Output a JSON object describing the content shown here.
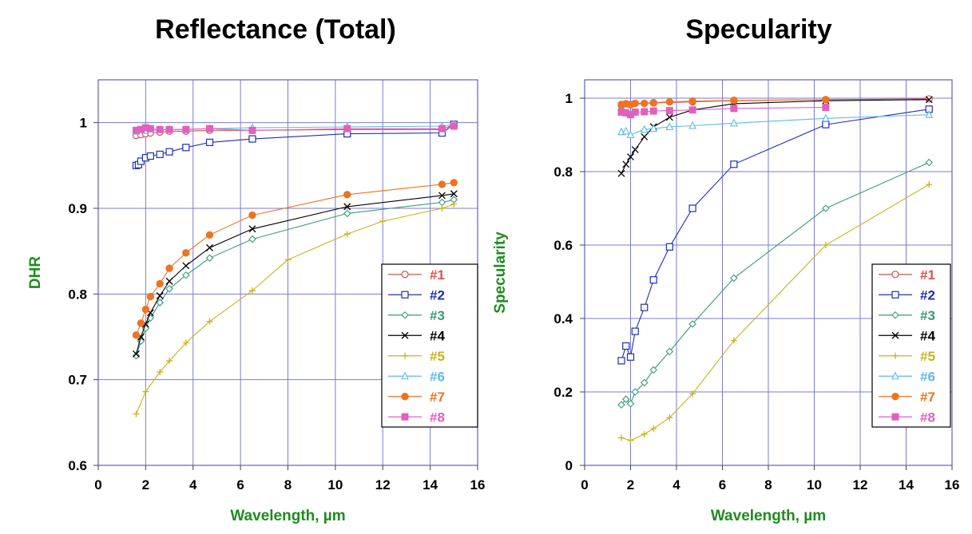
{
  "chart_data": [
    {
      "type": "line",
      "title": "Reflectance (Total)",
      "xlabel": "Wavelength, µm",
      "ylabel": "DHR",
      "xlim": [
        0,
        16
      ],
      "ylim": [
        0.6,
        1.05
      ],
      "xticks": [
        0,
        2,
        4,
        6,
        8,
        10,
        12,
        14,
        16
      ],
      "yticks": [
        0.6,
        0.7,
        0.8,
        0.9,
        1
      ],
      "xtick_labels": [
        "0",
        "2",
        "4",
        "6",
        "8",
        "10",
        "12",
        "14",
        "16"
      ],
      "ytick_labels": [
        "0.6",
        "0.7",
        "0.8",
        "0.9",
        "1"
      ],
      "grid": true,
      "legend_position": "right",
      "series": [
        {
          "name": "#1",
          "color": "#d9534f",
          "marker": "circle-open",
          "x": [
            1.6,
            1.8,
            2.0,
            2.2,
            2.6,
            3.0,
            3.7,
            4.7,
            6.5,
            10.5,
            14.5,
            15.0
          ],
          "y": [
            0.985,
            0.986,
            0.987,
            0.988,
            0.989,
            0.99,
            0.99,
            0.991,
            0.991,
            0.992,
            0.992,
            0.998
          ]
        },
        {
          "name": "#2",
          "color": "#1f2fb4",
          "marker": "square-open",
          "x": [
            1.6,
            1.7,
            1.8,
            2.0,
            2.2,
            2.6,
            3.0,
            3.7,
            4.7,
            6.5,
            10.5,
            14.5,
            15.0
          ],
          "y": [
            0.95,
            0.951,
            0.955,
            0.959,
            0.961,
            0.963,
            0.966,
            0.971,
            0.977,
            0.981,
            0.987,
            0.988,
            0.998
          ]
        },
        {
          "name": "#3",
          "color": "#3a9a7a",
          "marker": "diamond-open",
          "x": [
            1.6,
            1.8,
            2.0,
            2.2,
            2.6,
            3.0,
            3.7,
            4.7,
            6.5,
            10.5,
            14.5,
            15.0
          ],
          "y": [
            0.728,
            0.745,
            0.76,
            0.772,
            0.79,
            0.806,
            0.822,
            0.842,
            0.864,
            0.894,
            0.907,
            0.91
          ]
        },
        {
          "name": "#4",
          "color": "#000000",
          "marker": "x",
          "x": [
            1.6,
            1.8,
            2.0,
            2.2,
            2.6,
            3.0,
            3.7,
            4.7,
            6.5,
            10.5,
            14.5,
            15.0
          ],
          "y": [
            0.73,
            0.75,
            0.765,
            0.778,
            0.798,
            0.815,
            0.833,
            0.854,
            0.876,
            0.902,
            0.915,
            0.917
          ]
        },
        {
          "name": "#5",
          "color": "#c9b21e",
          "marker": "plus",
          "x": [
            1.6,
            2.0,
            2.6,
            3.0,
            3.7,
            4.7,
            6.5,
            8.0,
            10.5,
            12.0,
            14.5,
            15.0
          ],
          "y": [
            0.66,
            0.686,
            0.709,
            0.722,
            0.743,
            0.768,
            0.804,
            0.84,
            0.87,
            0.885,
            0.9,
            0.905
          ]
        },
        {
          "name": "#6",
          "color": "#5fb9e6",
          "marker": "triangle-open",
          "x": [
            1.6,
            2.0,
            3.0,
            4.7,
            6.5,
            10.5,
            14.5,
            15.0
          ],
          "y": [
            0.99,
            0.991,
            0.992,
            0.993,
            0.994,
            0.995,
            0.996,
            0.998
          ]
        },
        {
          "name": "#7",
          "color": "#ef7320",
          "marker": "circle-filled",
          "x": [
            1.6,
            1.8,
            2.0,
            2.2,
            2.6,
            3.0,
            3.7,
            4.7,
            6.5,
            10.5,
            14.5,
            15.0
          ],
          "y": [
            0.752,
            0.766,
            0.782,
            0.797,
            0.812,
            0.83,
            0.848,
            0.869,
            0.892,
            0.916,
            0.928,
            0.93
          ]
        },
        {
          "name": "#8",
          "color": "#e060c0",
          "marker": "square-filled",
          "x": [
            1.6,
            1.8,
            2.0,
            2.2,
            2.6,
            3.0,
            3.7,
            4.7,
            6.5,
            10.5,
            14.5,
            15.0
          ],
          "y": [
            0.991,
            0.992,
            0.994,
            0.993,
            0.992,
            0.992,
            0.992,
            0.993,
            0.991,
            0.993,
            0.993,
            0.996
          ]
        }
      ]
    },
    {
      "type": "line",
      "title": "Specularity",
      "xlabel": "Wavelength, µm",
      "ylabel": "Specularity",
      "xlim": [
        0,
        16
      ],
      "ylim": [
        0,
        1.05
      ],
      "xticks": [
        0,
        2,
        4,
        6,
        8,
        10,
        12,
        14,
        16
      ],
      "yticks": [
        0,
        0.2,
        0.4,
        0.6,
        0.8,
        1
      ],
      "xtick_labels": [
        "0",
        "2",
        "4",
        "6",
        "8",
        "10",
        "12",
        "14",
        "16"
      ],
      "ytick_labels": [
        "0",
        "0.2",
        "0.4",
        "0.6",
        "0.8",
        "1"
      ],
      "grid": true,
      "legend_position": "right",
      "series": [
        {
          "name": "#1",
          "color": "#d9534f",
          "marker": "circle-open",
          "x": [
            1.6,
            2.0,
            3.0,
            4.7,
            6.5,
            10.5,
            15.0
          ],
          "y": [
            0.98,
            0.983,
            0.987,
            0.99,
            0.993,
            0.996,
            0.998
          ]
        },
        {
          "name": "#2",
          "color": "#1f2fb4",
          "marker": "square-open",
          "x": [
            1.6,
            1.8,
            2.0,
            2.2,
            2.6,
            3.0,
            3.7,
            4.7,
            6.5,
            10.5,
            15.0
          ],
          "y": [
            0.285,
            0.325,
            0.295,
            0.365,
            0.43,
            0.505,
            0.595,
            0.7,
            0.82,
            0.928,
            0.97
          ]
        },
        {
          "name": "#3",
          "color": "#3a9a7a",
          "marker": "diamond-open",
          "x": [
            1.6,
            1.8,
            2.0,
            2.2,
            2.6,
            3.0,
            3.7,
            4.7,
            6.5,
            10.5,
            15.0
          ],
          "y": [
            0.165,
            0.18,
            0.168,
            0.2,
            0.225,
            0.26,
            0.31,
            0.385,
            0.51,
            0.7,
            0.825
          ]
        },
        {
          "name": "#4",
          "color": "#000000",
          "marker": "x",
          "x": [
            1.6,
            1.8,
            2.0,
            2.2,
            2.6,
            3.0,
            3.7,
            4.7,
            6.5,
            10.5,
            15.0
          ],
          "y": [
            0.795,
            0.82,
            0.84,
            0.86,
            0.895,
            0.922,
            0.948,
            0.968,
            0.985,
            0.993,
            0.996
          ]
        },
        {
          "name": "#5",
          "color": "#c9b21e",
          "marker": "plus",
          "x": [
            1.6,
            2.0,
            2.6,
            3.0,
            3.7,
            4.7,
            6.5,
            10.5,
            15.0
          ],
          "y": [
            0.075,
            0.068,
            0.085,
            0.1,
            0.13,
            0.195,
            0.34,
            0.6,
            0.765
          ]
        },
        {
          "name": "#6",
          "color": "#5fb9e6",
          "marker": "triangle-open",
          "x": [
            1.6,
            1.8,
            2.0,
            2.6,
            3.0,
            3.7,
            4.7,
            6.5,
            10.5,
            15.0
          ],
          "y": [
            0.908,
            0.91,
            0.9,
            0.915,
            0.917,
            0.922,
            0.925,
            0.932,
            0.945,
            0.955
          ]
        },
        {
          "name": "#7",
          "color": "#ef7320",
          "marker": "circle-filled",
          "x": [
            1.6,
            1.8,
            2.0,
            2.2,
            2.6,
            3.0,
            3.7,
            4.7,
            6.5,
            10.5
          ],
          "y": [
            0.983,
            0.985,
            0.982,
            0.986,
            0.986,
            0.988,
            0.99,
            0.992,
            0.994,
            0.996
          ]
        },
        {
          "name": "#8",
          "color": "#e060c0",
          "marker": "square-filled",
          "x": [
            1.6,
            1.8,
            2.0,
            2.2,
            2.6,
            3.0,
            3.7,
            4.7,
            6.5,
            10.5
          ],
          "y": [
            0.962,
            0.96,
            0.955,
            0.962,
            0.963,
            0.965,
            0.966,
            0.968,
            0.972,
            0.975
          ]
        }
      ]
    }
  ]
}
